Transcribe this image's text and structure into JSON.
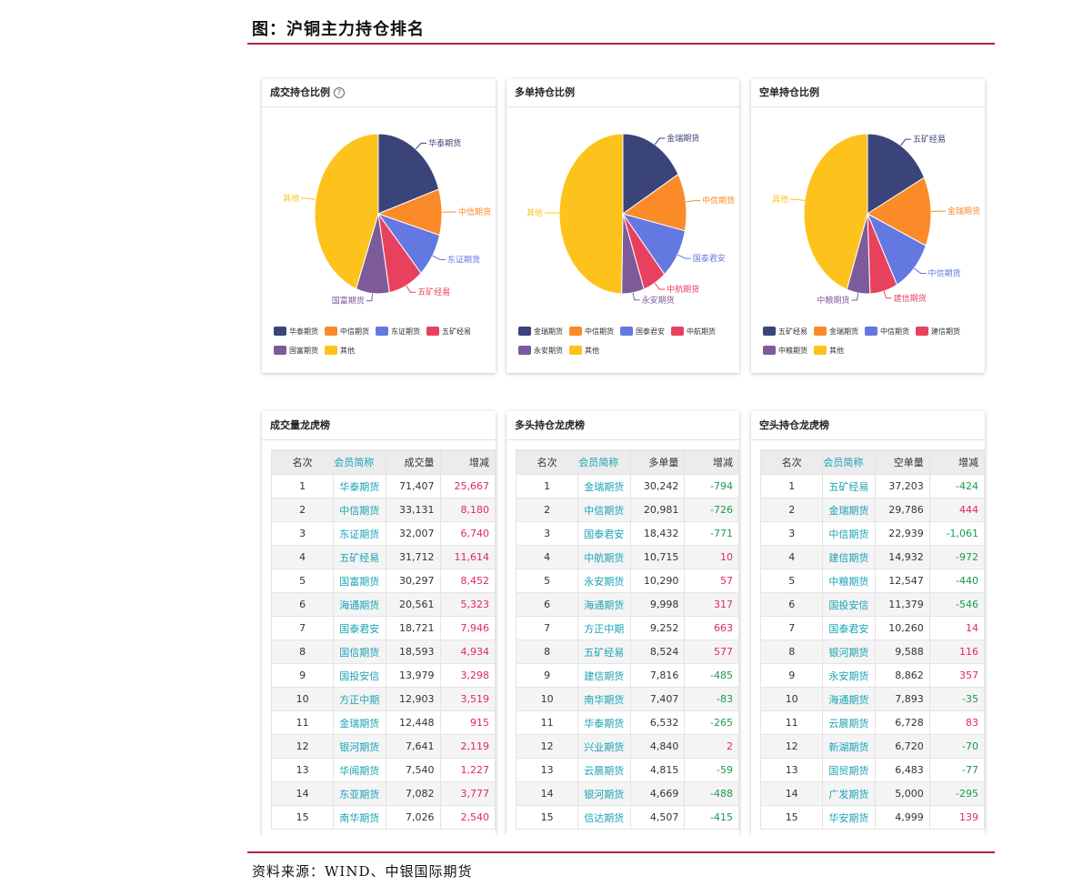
{
  "figure_title": "图：沪铜主力持仓排名",
  "source": "资料来源：WIND、中银国际期货",
  "colors": {
    "accent_rule": "#b0233a",
    "up": "#e0285a",
    "down": "#1b9a4c",
    "member_link": "#1aa3b4"
  },
  "chart_data": [
    {
      "type": "pie",
      "title": "成交持仓比例",
      "has_help_icon": true,
      "slices": [
        {
          "label": "华泰期货",
          "value": 71407,
          "color": "#3b4479"
        },
        {
          "label": "中信期货",
          "value": 33131,
          "color": "#fb8a29"
        },
        {
          "label": "东证期货",
          "value": 32007,
          "color": "#6378e1"
        },
        {
          "label": "五矿经易",
          "value": 31712,
          "color": "#e8415e"
        },
        {
          "label": "国富期货",
          "value": 30297,
          "color": "#7d5b9b"
        },
        {
          "label": "其他",
          "value": 158000,
          "color": "#fdc21b"
        }
      ],
      "legend": [
        "华泰期货",
        "中信期货",
        "东证期货",
        "五矿经易",
        "国富期货",
        "其他"
      ]
    },
    {
      "type": "pie",
      "title": "多单持仓比例",
      "slices": [
        {
          "label": "金瑞期货",
          "value": 30242,
          "color": "#3b4479"
        },
        {
          "label": "中信期货",
          "value": 20981,
          "color": "#fb8a29"
        },
        {
          "label": "国泰君安",
          "value": 18432,
          "color": "#6378e1"
        },
        {
          "label": "中航期货",
          "value": 10715,
          "color": "#e8415e"
        },
        {
          "label": "永安期货",
          "value": 10290,
          "color": "#7d5b9b"
        },
        {
          "label": "其他",
          "value": 89500,
          "color": "#fdc21b"
        }
      ],
      "legend": [
        "金瑞期货",
        "中信期货",
        "国泰君安",
        "中航期货",
        "永安期货",
        "其他"
      ]
    },
    {
      "type": "pie",
      "title": "空单持仓比例",
      "slices": [
        {
          "label": "五矿经易",
          "value": 37203,
          "color": "#3b4479"
        },
        {
          "label": "金瑞期货",
          "value": 29786,
          "color": "#fb8a29"
        },
        {
          "label": "中信期货",
          "value": 22939,
          "color": "#6378e1"
        },
        {
          "label": "建信期货",
          "value": 14932,
          "color": "#e8415e"
        },
        {
          "label": "中粮期货",
          "value": 12547,
          "color": "#7d5b9b"
        },
        {
          "label": "其他",
          "value": 95000,
          "color": "#fdc21b"
        }
      ],
      "legend": [
        "五矿经易",
        "金瑞期货",
        "中信期货",
        "建信期货",
        "中粮期货",
        "其他"
      ]
    },
    {
      "type": "table",
      "title": "成交量龙虎榜",
      "columns": [
        "名次",
        "会员简称",
        "成交量",
        "增减"
      ],
      "rows": [
        [
          "1",
          "华泰期货",
          "71,407",
          "25,667"
        ],
        [
          "2",
          "中信期货",
          "33,131",
          "8,180"
        ],
        [
          "3",
          "东证期货",
          "32,007",
          "6,740"
        ],
        [
          "4",
          "五矿经易",
          "31,712",
          "11,614"
        ],
        [
          "5",
          "国富期货",
          "30,297",
          "8,452"
        ],
        [
          "6",
          "海通期货",
          "20,561",
          "5,323"
        ],
        [
          "7",
          "国泰君安",
          "18,721",
          "7,946"
        ],
        [
          "8",
          "国信期货",
          "18,593",
          "4,934"
        ],
        [
          "9",
          "国投安信",
          "13,979",
          "3,298"
        ],
        [
          "10",
          "方正中期",
          "12,903",
          "3,519"
        ],
        [
          "11",
          "金瑞期货",
          "12,448",
          "915"
        ],
        [
          "12",
          "银河期货",
          "7,641",
          "2,119"
        ],
        [
          "13",
          "华闻期货",
          "7,540",
          "1,227"
        ],
        [
          "14",
          "东亚期货",
          "7,082",
          "3,777"
        ],
        [
          "15",
          "南华期货",
          "7,026",
          "2,540"
        ]
      ]
    },
    {
      "type": "table",
      "title": "多头持仓龙虎榜",
      "columns": [
        "名次",
        "会员简称",
        "多单量",
        "增减"
      ],
      "rows": [
        [
          "1",
          "金瑞期货",
          "30,242",
          "-794"
        ],
        [
          "2",
          "中信期货",
          "20,981",
          "-726"
        ],
        [
          "3",
          "国泰君安",
          "18,432",
          "-771"
        ],
        [
          "4",
          "中航期货",
          "10,715",
          "10"
        ],
        [
          "5",
          "永安期货",
          "10,290",
          "57"
        ],
        [
          "6",
          "海通期货",
          "9,998",
          "317"
        ],
        [
          "7",
          "方正中期",
          "9,252",
          "663"
        ],
        [
          "8",
          "五矿经易",
          "8,524",
          "577"
        ],
        [
          "9",
          "建信期货",
          "7,816",
          "-485"
        ],
        [
          "10",
          "南华期货",
          "7,407",
          "-83"
        ],
        [
          "11",
          "华泰期货",
          "6,532",
          "-265"
        ],
        [
          "12",
          "兴业期货",
          "4,840",
          "2"
        ],
        [
          "13",
          "云晨期货",
          "4,815",
          "-59"
        ],
        [
          "14",
          "银河期货",
          "4,669",
          "-488"
        ],
        [
          "15",
          "信达期货",
          "4,507",
          "-415"
        ]
      ]
    },
    {
      "type": "table",
      "title": "空头持仓龙虎榜",
      "columns": [
        "名次",
        "会员简称",
        "空单量",
        "增减"
      ],
      "rows": [
        [
          "1",
          "五矿经易",
          "37,203",
          "-424"
        ],
        [
          "2",
          "金瑞期货",
          "29,786",
          "444"
        ],
        [
          "3",
          "中信期货",
          "22,939",
          "-1,061"
        ],
        [
          "4",
          "建信期货",
          "14,932",
          "-972"
        ],
        [
          "5",
          "中粮期货",
          "12,547",
          "-440"
        ],
        [
          "6",
          "国投安信",
          "11,379",
          "-546"
        ],
        [
          "7",
          "国泰君安",
          "10,260",
          "14"
        ],
        [
          "8",
          "银河期货",
          "9,588",
          "116"
        ],
        [
          "9",
          "永安期货",
          "8,862",
          "357"
        ],
        [
          "10",
          "海通期货",
          "7,893",
          "-35"
        ],
        [
          "11",
          "云晨期货",
          "6,728",
          "83"
        ],
        [
          "12",
          "新湖期货",
          "6,720",
          "-70"
        ],
        [
          "13",
          "国贸期货",
          "6,483",
          "-77"
        ],
        [
          "14",
          "广发期货",
          "5,000",
          "-295"
        ],
        [
          "15",
          "华安期货",
          "4,999",
          "139"
        ]
      ]
    }
  ]
}
